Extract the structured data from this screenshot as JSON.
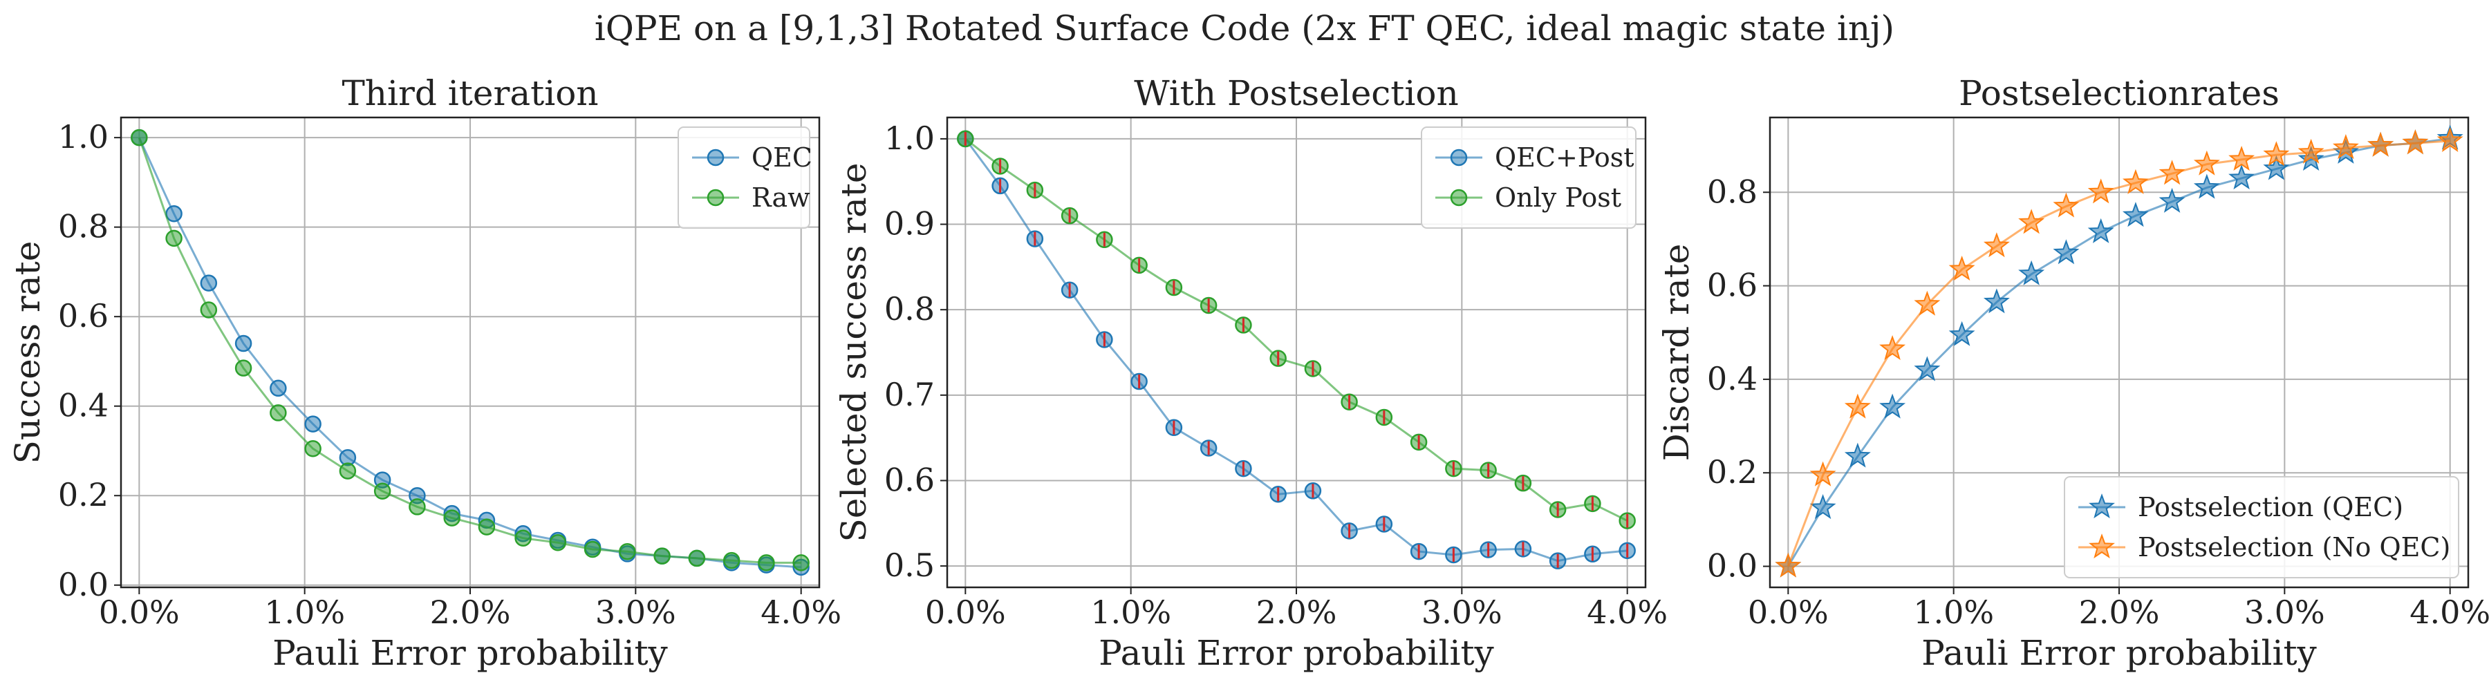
{
  "figure": {
    "suptitle": "iQPE on a [9,1,3] Rotated Surface Code (2x FT QEC, ideal magic state inj)"
  },
  "chart_data": [
    {
      "type": "line",
      "title": "Third iteration",
      "xlabel": "Pauli Error probability",
      "ylabel": "Success rate",
      "xlim": [
        -0.0011,
        0.0411
      ],
      "ylim": [
        -0.005,
        1.045
      ],
      "xticks": [
        0,
        0.01,
        0.02,
        0.03,
        0.04
      ],
      "xtick_labels": [
        "0.0%",
        "1.0%",
        "2.0%",
        "3.0%",
        "4.0%"
      ],
      "yticks": [
        0.0,
        0.2,
        0.4,
        0.6,
        0.8,
        1.0
      ],
      "ytick_labels": [
        "0.0",
        "0.2",
        "0.4",
        "0.6",
        "0.8",
        "1.0"
      ],
      "grid": true,
      "legend_position": "top-right",
      "x": [
        0,
        0.0021,
        0.0042,
        0.0063,
        0.0084,
        0.0105,
        0.0126,
        0.0147,
        0.0168,
        0.0189,
        0.021,
        0.0232,
        0.0253,
        0.0274,
        0.0295,
        0.0316,
        0.0337,
        0.0358,
        0.0379,
        0.04
      ],
      "series": [
        {
          "name": "QEC",
          "color": "#1f77b4",
          "marker": "circle",
          "values": [
            1.0,
            0.83,
            0.675,
            0.54,
            0.44,
            0.36,
            0.285,
            0.235,
            0.2,
            0.16,
            0.145,
            0.115,
            0.1,
            0.085,
            0.07,
            0.065,
            0.06,
            0.05,
            0.045,
            0.04
          ]
        },
        {
          "name": "Raw",
          "color": "#2ca02c",
          "marker": "circle",
          "values": [
            1.0,
            0.775,
            0.615,
            0.485,
            0.385,
            0.305,
            0.255,
            0.21,
            0.175,
            0.15,
            0.13,
            0.105,
            0.095,
            0.08,
            0.075,
            0.065,
            0.06,
            0.055,
            0.05,
            0.05
          ]
        }
      ]
    },
    {
      "type": "line",
      "title": "With Postselection",
      "xlabel": "Pauli Error probability",
      "ylabel": "Selected success rate",
      "xlim": [
        -0.0011,
        0.0411
      ],
      "ylim": [
        0.475,
        1.025
      ],
      "xticks": [
        0,
        0.01,
        0.02,
        0.03,
        0.04
      ],
      "xtick_labels": [
        "0.0%",
        "1.0%",
        "2.0%",
        "3.0%",
        "4.0%"
      ],
      "yticks": [
        0.5,
        0.6,
        0.7,
        0.8,
        0.9,
        1.0
      ],
      "ytick_labels": [
        "0.5",
        "0.6",
        "0.7",
        "0.8",
        "0.9",
        "1.0"
      ],
      "grid": true,
      "legend_position": "top-right",
      "error_bar_color": "#d62728",
      "x": [
        0,
        0.0021,
        0.0042,
        0.0063,
        0.0084,
        0.0105,
        0.0126,
        0.0147,
        0.0168,
        0.0189,
        0.021,
        0.0232,
        0.0253,
        0.0274,
        0.0295,
        0.0316,
        0.0337,
        0.0358,
        0.0379,
        0.04
      ],
      "series": [
        {
          "name": "QEC+Post",
          "color": "#1f77b4",
          "marker": "circle",
          "values": [
            1.0,
            0.945,
            0.883,
            0.823,
            0.765,
            0.716,
            0.662,
            0.638,
            0.614,
            0.584,
            0.588,
            0.541,
            0.549,
            0.517,
            0.513,
            0.519,
            0.52,
            0.506,
            0.514,
            0.518
          ]
        },
        {
          "name": "Only Post",
          "color": "#2ca02c",
          "marker": "circle",
          "values": [
            1.0,
            0.968,
            0.94,
            0.91,
            0.882,
            0.852,
            0.826,
            0.805,
            0.782,
            0.743,
            0.731,
            0.692,
            0.674,
            0.645,
            0.614,
            0.612,
            0.597,
            0.566,
            0.573,
            0.553
          ]
        }
      ]
    },
    {
      "type": "line",
      "title": "Postselectionrates",
      "xlabel": "Pauli Error probability",
      "ylabel": "Discard rate",
      "xlim": [
        -0.0011,
        0.0411
      ],
      "ylim": [
        -0.045,
        0.96
      ],
      "xticks": [
        0,
        0.01,
        0.02,
        0.03,
        0.04
      ],
      "xtick_labels": [
        "0.0%",
        "1.0%",
        "2.0%",
        "3.0%",
        "4.0%"
      ],
      "yticks": [
        0.0,
        0.2,
        0.4,
        0.6,
        0.8
      ],
      "ytick_labels": [
        "0.0",
        "0.2",
        "0.4",
        "0.6",
        "0.8"
      ],
      "grid": true,
      "legend_position": "bottom-right",
      "x": [
        0,
        0.0021,
        0.0042,
        0.0063,
        0.0084,
        0.0105,
        0.0126,
        0.0147,
        0.0168,
        0.0189,
        0.021,
        0.0232,
        0.0253,
        0.0274,
        0.0295,
        0.0316,
        0.0337,
        0.0358,
        0.0379,
        0.04
      ],
      "series": [
        {
          "name": "Postselection (QEC)",
          "color": "#1f77b4",
          "marker": "star",
          "values": [
            0.0,
            0.125,
            0.235,
            0.34,
            0.42,
            0.495,
            0.565,
            0.625,
            0.67,
            0.715,
            0.75,
            0.78,
            0.81,
            0.83,
            0.85,
            0.87,
            0.885,
            0.9,
            0.905,
            0.915
          ]
        },
        {
          "name": "Postselection (No QEC)",
          "color": "#ff7f0e",
          "marker": "star",
          "values": [
            0.0,
            0.195,
            0.34,
            0.465,
            0.56,
            0.635,
            0.685,
            0.735,
            0.77,
            0.8,
            0.82,
            0.84,
            0.86,
            0.87,
            0.88,
            0.885,
            0.895,
            0.9,
            0.905,
            0.91
          ]
        }
      ]
    }
  ]
}
